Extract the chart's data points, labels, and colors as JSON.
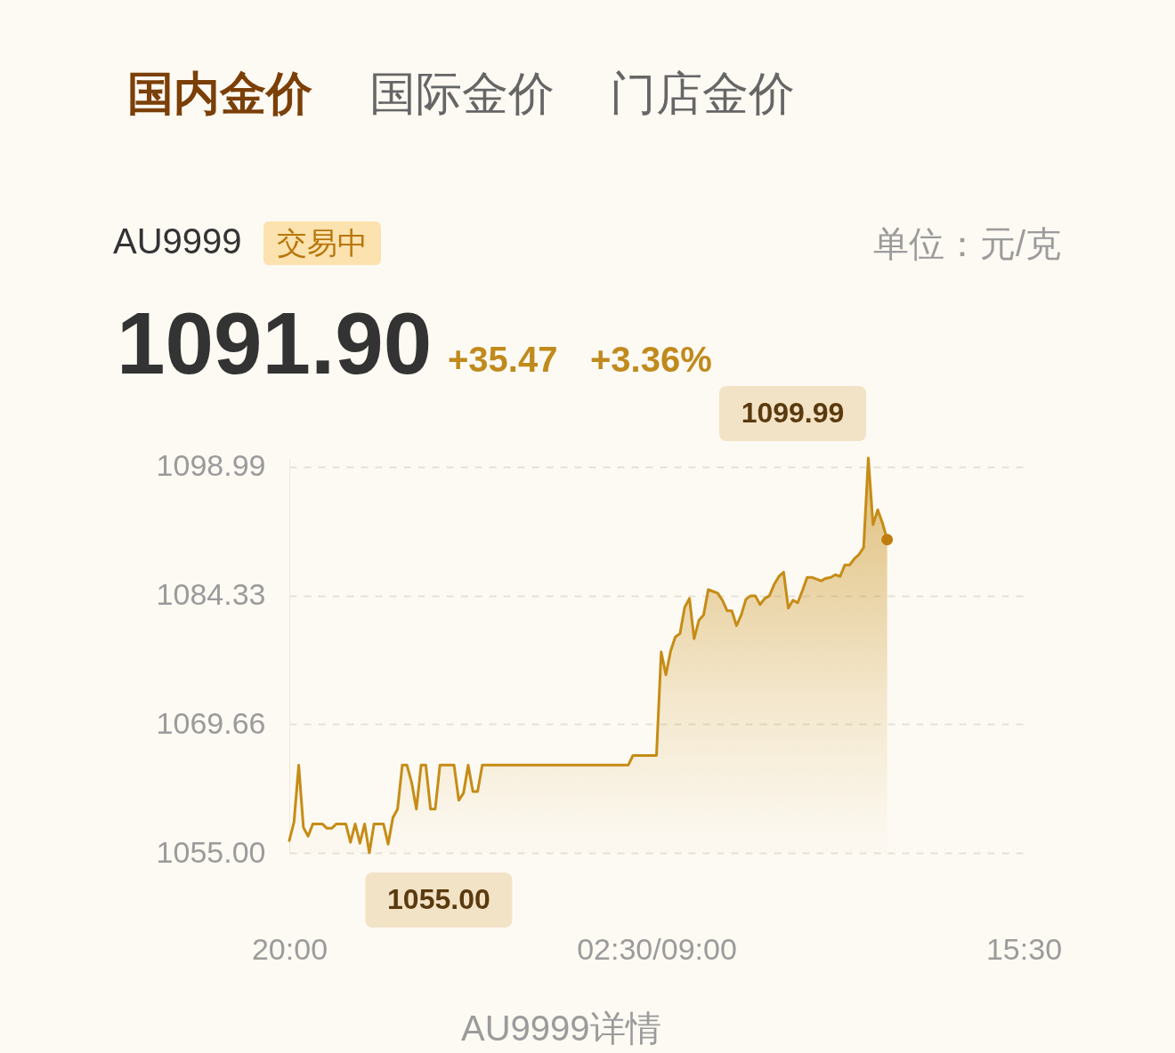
{
  "chart_data": {
    "type": "area",
    "title": "AU9999",
    "annotations": [
      "国内金价",
      "国际金价",
      "门店金价",
      "交易中",
      "单位：元/克",
      "1091.90",
      "+35.47",
      "+3.36%",
      "AU9999详情"
    ],
    "categories": [
      "20:00",
      null,
      null,
      null,
      null,
      null,
      null,
      null,
      null,
      null,
      null,
      null,
      null,
      null,
      null,
      null,
      null,
      null,
      null,
      null,
      null,
      null,
      null,
      null,
      null,
      null,
      null,
      null,
      null,
      null,
      null,
      null,
      null,
      null,
      null,
      null,
      null,
      null,
      null,
      null,
      null,
      null,
      null,
      null,
      null,
      null,
      null,
      null,
      null,
      null,
      null,
      null,
      null,
      null,
      null,
      null,
      null,
      null,
      null,
      null,
      null,
      null,
      null,
      null,
      null,
      null,
      null,
      null,
      null,
      null,
      null,
      null,
      null,
      null,
      null,
      null,
      null,
      null,
      "02:30/09:00",
      null,
      null,
      null,
      null,
      null,
      null,
      null,
      null,
      null,
      null,
      null,
      null,
      null,
      null,
      null,
      null,
      null,
      null,
      null,
      null,
      null,
      null,
      null,
      null,
      null,
      null,
      null,
      null,
      null,
      null,
      null,
      null,
      null,
      null,
      null,
      null,
      null,
      null,
      null,
      null,
      null,
      null,
      null,
      null,
      null,
      null,
      null,
      null,
      null,
      null,
      null,
      null,
      null,
      null,
      null,
      null,
      null,
      null,
      null,
      null,
      null,
      null,
      null,
      null,
      null,
      null,
      null,
      null,
      null,
      null,
      null,
      null,
      null,
      null,
      null,
      null,
      null,
      "15:30"
    ],
    "ylim": [
      1055,
      1100
    ],
    "yticks": [
      {
        "value": 1055,
        "label": "1055.00"
      },
      1069.66,
      1084.33,
      1098.99
    ],
    "grid": "y",
    "series": [
      {
        "color": "#c68c16",
        "values": [
          1056.4,
          1058.5,
          1065.0,
          1057.9,
          1056.9,
          1058.3,
          1058.3,
          1058.3,
          1057.8,
          1057.8,
          1058.3,
          1058.3,
          1058.3,
          1056.2,
          1058.3,
          1056.1,
          1058.3,
          1055,
          1058.3,
          1058.3,
          1058.3,
          1056.0,
          1059.0,
          1060.0,
          1065.0,
          1065.0,
          1063.0,
          1060.0,
          1065.0,
          1065.0,
          1060.0,
          1060.0,
          1065.0,
          1065.0,
          1065.0,
          1065.0,
          1061.0,
          1061.8,
          1065.0,
          1062.0,
          1062.0,
          1065.0,
          1065.0,
          1065.0,
          1065.0,
          1065.0,
          1065.0,
          1065.0,
          1065.0,
          1065.0,
          1065.0,
          1065.0,
          1065.0,
          1065.0,
          1065.0,
          1065.0,
          1065.0,
          1065.0,
          1065.0,
          1065.0,
          1065.0,
          1065.0,
          1065.0,
          1065.0,
          1065.0,
          1065.0,
          1065.0,
          1065.0,
          1065.0,
          1065.0,
          1065.0,
          1065.0,
          1065.0,
          1066.1,
          1066.1,
          1066.1,
          1066.1,
          1066.1,
          1066.1,
          1077.9,
          1075.3,
          1078.0,
          1079.6,
          1080.0,
          1083.0,
          1084.0,
          1079.4,
          1081.5,
          1082.1,
          1085.0,
          1084.8,
          1084.6,
          1083.8,
          1082.6,
          1082.6,
          1080.9,
          1082.1,
          1083.9,
          1084.3,
          1084.3,
          1083.3,
          1084.0,
          1084.3,
          1085.6,
          1086.5,
          1087.0,
          1082.9,
          1083.8,
          1083.5,
          1084.9,
          1086.4,
          1086.4,
          1086.2,
          1086.0,
          1086.3,
          1086.4,
          1086.7,
          1086.5,
          1087.8,
          1087.8,
          1088.5,
          1089.0,
          1089.8,
          1099.99,
          1092.4,
          1094.1,
          1092.6,
          1090.7,
          null,
          null,
          null,
          null,
          null,
          null,
          null,
          null,
          null,
          null,
          null,
          null,
          null,
          null,
          null,
          null,
          null,
          null,
          null,
          null,
          null,
          null,
          null,
          null,
          null,
          null,
          null,
          null,
          null
        ],
        "value_labels": [
          null,
          null,
          null,
          null,
          null,
          null,
          null,
          null,
          null,
          null,
          null,
          null,
          null,
          null,
          null,
          null,
          null,
          "1055.00",
          null,
          null,
          null,
          null,
          null,
          null,
          null,
          null,
          null,
          null,
          null,
          null,
          null,
          null,
          null,
          null,
          null,
          null,
          null,
          null,
          null,
          null,
          null,
          null,
          null,
          null,
          null,
          null,
          null,
          null,
          null,
          null,
          null,
          null,
          null,
          null,
          null,
          null,
          null,
          null,
          null,
          null,
          null,
          null,
          null,
          null,
          null,
          null,
          null,
          null,
          null,
          null,
          null,
          null,
          null,
          null,
          null,
          null,
          null,
          null,
          null,
          null,
          null,
          null,
          null,
          null,
          null,
          null,
          null,
          null,
          null,
          null,
          null,
          null,
          null,
          null,
          null,
          null,
          null,
          null,
          null,
          null,
          null,
          null,
          null,
          null,
          null,
          null,
          null,
          null,
          null,
          null,
          null,
          null,
          null,
          null,
          null,
          null,
          null,
          null,
          null,
          null,
          null,
          null,
          null,
          "1099.99",
          null,
          null,
          null,
          null,
          null,
          null,
          null,
          null,
          null,
          null,
          null,
          null,
          null,
          null,
          null,
          null,
          null,
          null,
          null,
          null,
          null,
          null,
          null,
          null,
          null,
          null,
          null,
          null,
          null,
          null,
          null,
          null,
          null
        ]
      },
      {
        "type": "scatter",
        "color": "#c07c0e",
        "marker": "circle",
        "values": [
          null,
          null,
          null,
          null,
          null,
          null,
          null,
          null,
          null,
          null,
          null,
          null,
          null,
          null,
          null,
          null,
          null,
          null,
          null,
          null,
          null,
          null,
          null,
          null,
          null,
          null,
          null,
          null,
          null,
          null,
          null,
          null,
          null,
          null,
          null,
          null,
          null,
          null,
          null,
          null,
          null,
          null,
          null,
          null,
          null,
          null,
          null,
          null,
          null,
          null,
          null,
          null,
          null,
          null,
          null,
          null,
          null,
          null,
          null,
          null,
          null,
          null,
          null,
          null,
          null,
          null,
          null,
          null,
          null,
          null,
          null,
          null,
          null,
          null,
          null,
          null,
          null,
          null,
          null,
          null,
          null,
          null,
          null,
          null,
          null,
          null,
          null,
          null,
          null,
          null,
          null,
          null,
          null,
          null,
          null,
          null,
          null,
          null,
          null,
          null,
          null,
          null,
          null,
          null,
          null,
          null,
          null,
          null,
          null,
          null,
          null,
          null,
          null,
          null,
          null,
          null,
          null,
          null,
          null,
          null,
          null,
          null,
          null,
          null,
          null,
          null,
          null,
          1090.7,
          null,
          null,
          null,
          null,
          null,
          null,
          null,
          null,
          null,
          null,
          null,
          null,
          null,
          null,
          null,
          null,
          null,
          null,
          null,
          null,
          null,
          null,
          null,
          null,
          null,
          null,
          null,
          null,
          null
        ]
      }
    ]
  }
}
